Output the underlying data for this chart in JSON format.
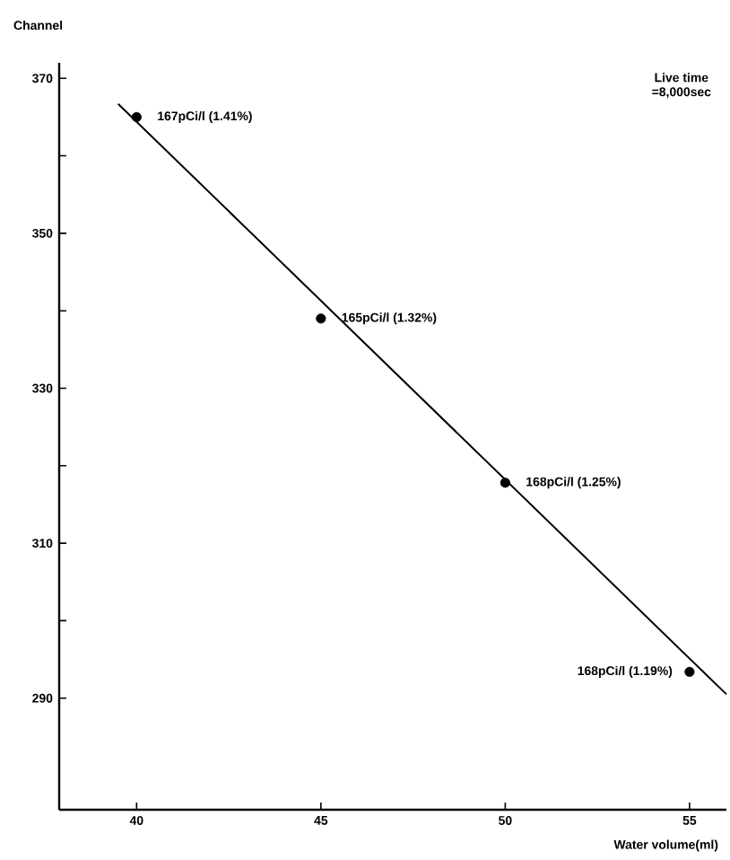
{
  "chart_data": {
    "type": "scatter",
    "xlabel": "Water volume(ml)",
    "ylabel": "Channel",
    "series": [
      {
        "color": "#000000",
        "marker": "circle",
        "x": [
          40,
          45,
          50,
          55
        ],
        "values": [
          365,
          339,
          317.8,
          293.4
        ]
      },
      {
        "type": "line",
        "color": "#000000",
        "marker": "none",
        "line_style": "solid",
        "x": [
          39.5,
          56
        ],
        "values": [
          366.7,
          290.5
        ]
      }
    ],
    "annotations": [
      {
        "text": "167pCi/l (1.41%)",
        "x": 40,
        "y": 365
      },
      {
        "text": "165pCi/l (1.32%)",
        "x": 45,
        "y": 339
      },
      {
        "text": "168pCi/l (1.25%)",
        "x": 50,
        "y": 317.8
      },
      {
        "text": "168pCi/l (1.19%)",
        "x": 55,
        "y": 293.4
      },
      "Live time",
      "=8,000sec"
    ],
    "xlim": [
      37.9,
      56
    ],
    "ylim": [
      275.6,
      372
    ],
    "xticks": [
      40,
      45,
      50,
      55
    ],
    "yticks": [
      290,
      {
        "value": 300,
        "label": null
      },
      310,
      {
        "value": 320,
        "label": null
      },
      330,
      {
        "value": 340,
        "label": null
      },
      350,
      {
        "value": 360,
        "label": null
      },
      370
    ],
    "grid": false
  }
}
